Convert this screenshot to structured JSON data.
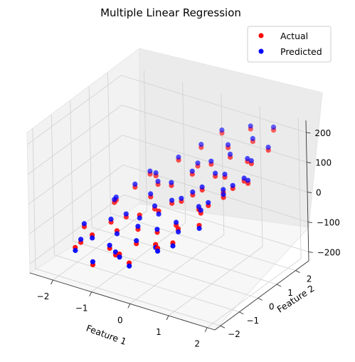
{
  "chart_data": {
    "type": "scatter",
    "title": "Multiple Linear Regression",
    "xlabel": "Feature 1",
    "ylabel": "Feature 2",
    "zlabel": "",
    "xlim": [
      -2.6,
      2.2
    ],
    "ylim": [
      -2.3,
      2.7
    ],
    "zlim": [
      -230,
      240
    ],
    "xticks": [
      "−2",
      "−1",
      "0",
      "1",
      "2"
    ],
    "xtick_values": [
      -2,
      -1,
      0,
      1,
      2
    ],
    "yticks": [
      "−2",
      "−1",
      "0",
      "1",
      "2"
    ],
    "ytick_values": [
      -2,
      -1,
      0,
      1,
      2
    ],
    "zticks": [
      "−200",
      "−100",
      "0",
      "100",
      "200"
    ],
    "ztick_values": [
      -200,
      -100,
      0,
      100,
      200
    ],
    "grid": true,
    "legend_position": "top-right",
    "series": [
      {
        "name": "Actual",
        "color": "#ff0000",
        "points": [
          [
            -1.8,
            -1.5,
            -150
          ],
          [
            -1.5,
            -1.2,
            -110
          ],
          [
            -1.2,
            -1.8,
            -170
          ],
          [
            -1.0,
            -0.9,
            -90
          ],
          [
            -0.8,
            -1.4,
            -140
          ],
          [
            -0.6,
            -0.5,
            -40
          ],
          [
            -0.4,
            -1.1,
            -100
          ],
          [
            -0.2,
            -0.3,
            -20
          ],
          [
            0.0,
            -0.8,
            -60
          ],
          [
            0.2,
            0.1,
            10
          ],
          [
            0.4,
            -0.6,
            -30
          ],
          [
            0.6,
            0.4,
            50
          ],
          [
            0.8,
            -0.2,
            20
          ],
          [
            1.0,
            0.8,
            90
          ],
          [
            1.2,
            0.3,
            70
          ],
          [
            1.4,
            1.2,
            140
          ],
          [
            1.6,
            0.6,
            110
          ],
          [
            1.8,
            1.5,
            180
          ],
          [
            -1.6,
            0.2,
            -70
          ],
          [
            -1.3,
            0.7,
            -30
          ],
          [
            -0.9,
            1.0,
            10
          ],
          [
            -0.5,
            1.4,
            60
          ],
          [
            -0.1,
            1.8,
            100
          ],
          [
            0.3,
            2.1,
            150
          ],
          [
            0.7,
            1.6,
            140
          ],
          [
            1.1,
            2.0,
            200
          ],
          [
            -2.0,
            -0.6,
            -130
          ],
          [
            -1.7,
            0.5,
            -80
          ],
          [
            -1.1,
            -0.2,
            -80
          ],
          [
            -0.7,
            0.3,
            -20
          ],
          [
            -0.3,
            0.6,
            20
          ],
          [
            0.1,
            0.9,
            60
          ],
          [
            0.5,
            1.1,
            100
          ],
          [
            0.9,
            1.3,
            130
          ],
          [
            1.3,
            1.7,
            180
          ],
          [
            1.7,
            2.0,
            220
          ],
          [
            -1.4,
            -0.4,
            -100
          ],
          [
            -0.6,
            -1.6,
            -120
          ],
          [
            0.2,
            -1.3,
            -70
          ],
          [
            0.6,
            -0.9,
            -20
          ],
          [
            1.0,
            -0.5,
            30
          ],
          [
            1.4,
            -0.1,
            80
          ],
          [
            -0.2,
            -1.9,
            -120
          ],
          [
            0.4,
            -1.6,
            -60
          ],
          [
            1.2,
            -1.0,
            20
          ],
          [
            -1.9,
            -1.0,
            -160
          ],
          [
            -0.8,
            0.9,
            -10
          ],
          [
            0.0,
            1.4,
            60
          ],
          [
            0.8,
            0.7,
            90
          ],
          [
            1.6,
            1.0,
            150
          ],
          [
            -1.2,
            1.3,
            -10
          ],
          [
            -0.4,
            -0.1,
            -30
          ],
          [
            0.4,
            0.3,
            30
          ],
          [
            1.8,
            0.4,
            120
          ],
          [
            -1.0,
            -1.3,
            -130
          ],
          [
            0.0,
            0.0,
            0
          ],
          [
            1.1,
            -0.3,
            50
          ],
          [
            -0.5,
            -0.8,
            -70
          ],
          [
            0.7,
            -1.4,
            -40
          ],
          [
            1.5,
            0.2,
            100
          ]
        ]
      },
      {
        "name": "Predicted",
        "color": "#0000ff",
        "points": [
          [
            -1.8,
            -1.5,
            -160
          ],
          [
            -1.5,
            -1.2,
            -120
          ],
          [
            -1.2,
            -1.8,
            -160
          ],
          [
            -1.0,
            -0.9,
            -100
          ],
          [
            -0.8,
            -1.4,
            -130
          ],
          [
            -0.6,
            -0.5,
            -50
          ],
          [
            -0.4,
            -1.1,
            -90
          ],
          [
            -0.2,
            -0.3,
            -30
          ],
          [
            0.0,
            -0.8,
            -50
          ],
          [
            0.2,
            0.1,
            20
          ],
          [
            0.4,
            -0.6,
            -20
          ],
          [
            0.6,
            0.4,
            60
          ],
          [
            0.8,
            -0.2,
            30
          ],
          [
            1.0,
            0.8,
            100
          ],
          [
            1.2,
            0.3,
            80
          ],
          [
            1.4,
            1.2,
            150
          ],
          [
            1.6,
            0.6,
            120
          ],
          [
            1.8,
            1.5,
            190
          ],
          [
            -1.6,
            0.2,
            -60
          ],
          [
            -1.3,
            0.7,
            -20
          ],
          [
            -0.9,
            1.0,
            20
          ],
          [
            -0.5,
            1.4,
            70
          ],
          [
            -0.1,
            1.8,
            110
          ],
          [
            0.3,
            2.1,
            160
          ],
          [
            0.7,
            1.6,
            150
          ],
          [
            1.1,
            2.0,
            210
          ],
          [
            -2.0,
            -0.6,
            -120
          ],
          [
            -1.7,
            0.5,
            -70
          ],
          [
            -1.1,
            -0.2,
            -70
          ],
          [
            -0.7,
            0.3,
            -10
          ],
          [
            -0.3,
            0.6,
            30
          ],
          [
            0.1,
            0.9,
            70
          ],
          [
            0.5,
            1.1,
            110
          ],
          [
            0.9,
            1.3,
            140
          ],
          [
            1.3,
            1.7,
            190
          ],
          [
            1.7,
            2.0,
            230
          ],
          [
            -1.4,
            -0.4,
            -90
          ],
          [
            -0.6,
            -1.6,
            -130
          ],
          [
            0.2,
            -1.3,
            -80
          ],
          [
            0.6,
            -0.9,
            -30
          ],
          [
            1.0,
            -0.5,
            40
          ],
          [
            1.4,
            -0.1,
            90
          ],
          [
            -0.2,
            -1.9,
            -130
          ],
          [
            0.4,
            -1.6,
            -70
          ],
          [
            1.2,
            -1.0,
            10
          ],
          [
            -1.9,
            -1.0,
            -150
          ],
          [
            -0.8,
            0.9,
            0
          ],
          [
            0.0,
            1.4,
            70
          ],
          [
            0.8,
            0.7,
            100
          ],
          [
            1.6,
            1.0,
            160
          ],
          [
            -1.2,
            1.3,
            0
          ],
          [
            -0.4,
            -0.1,
            -20
          ],
          [
            0.4,
            0.3,
            40
          ],
          [
            1.8,
            0.4,
            130
          ],
          [
            -1.0,
            -1.3,
            -120
          ],
          [
            0.0,
            0.0,
            10
          ],
          [
            1.1,
            -0.3,
            60
          ],
          [
            -0.5,
            -0.8,
            -60
          ],
          [
            0.7,
            -1.4,
            -50
          ],
          [
            1.5,
            0.2,
            110
          ]
        ]
      }
    ]
  }
}
